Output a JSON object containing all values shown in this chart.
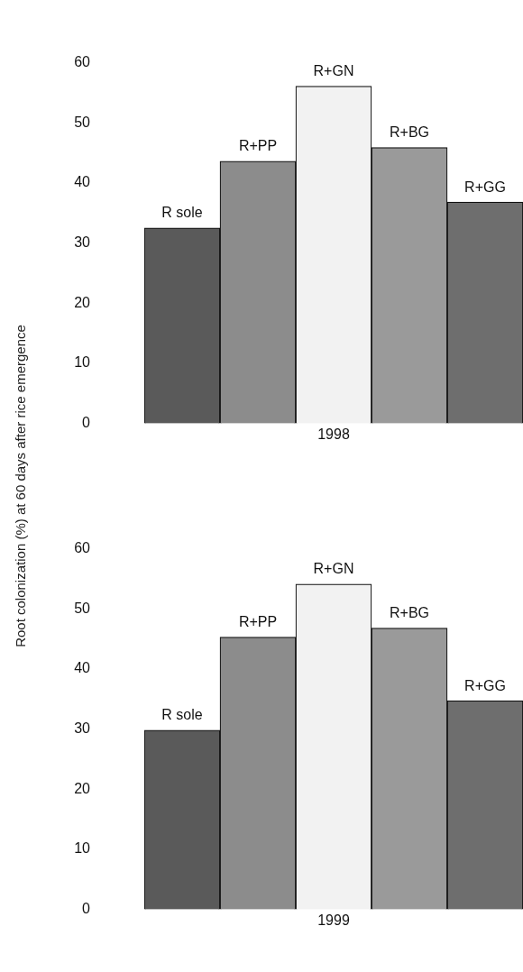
{
  "chart_data": [
    {
      "type": "bar",
      "ylabel": "Root colonization (%) at 60 days after rice emergence",
      "xlabel": "1998",
      "categories": [
        "R sole",
        "R+PP",
        "R+GN",
        "R+BG",
        "R+GG"
      ],
      "values": [
        32.5,
        43.6,
        56.1,
        45.9,
        36.8
      ],
      "colors": [
        "#5a5a5a",
        "#8c8c8c",
        "#f2f2f2",
        "#9a9a9a",
        "#6e6e6e"
      ],
      "ylim": [
        0,
        60
      ],
      "yticks": [
        0,
        10,
        20,
        30,
        40,
        50,
        60
      ],
      "grid": false,
      "legend": false,
      "tick_labels": "y"
    },
    {
      "type": "bar",
      "xlabel": "1999",
      "categories": [
        "R sole",
        "R+PP",
        "R+GN",
        "R+BG",
        "R+GG"
      ],
      "values": [
        29.8,
        45.3,
        54.1,
        46.8,
        34.7
      ],
      "colors": [
        "#5a5a5a",
        "#8c8c8c",
        "#f2f2f2",
        "#9a9a9a",
        "#6e6e6e"
      ],
      "ylim": [
        0,
        60
      ],
      "yticks": [
        0,
        10,
        20,
        30,
        40,
        50,
        60
      ],
      "grid": false,
      "legend": false,
      "tick_labels": "y"
    }
  ]
}
